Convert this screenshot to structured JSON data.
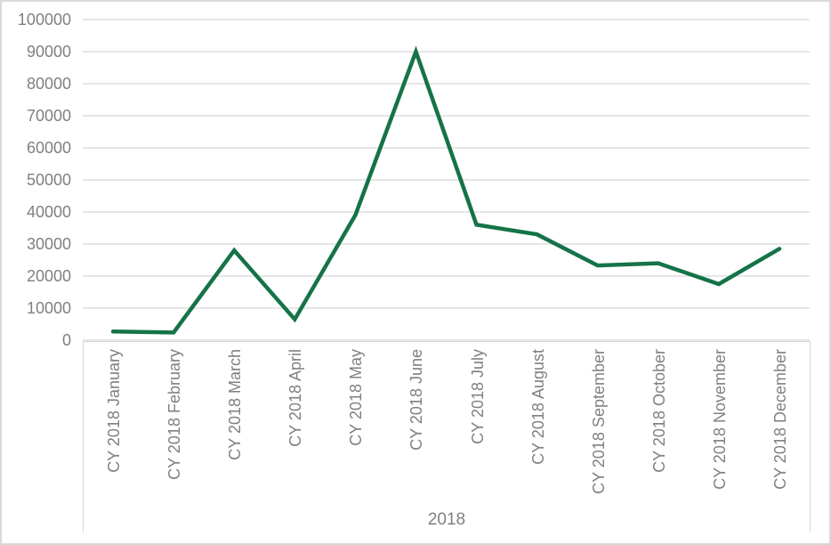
{
  "chart_data": {
    "type": "line",
    "title": "",
    "categories": [
      "CY 2018 January",
      "CY 2018 February",
      "CY 2018 March",
      "CY 2018 April",
      "CY 2018 May",
      "CY 2018 June",
      "CY 2018 July",
      "CY 2018 August",
      "CY 2018 September",
      "CY 2018 October",
      "CY 2018 November",
      "CY 2018 December"
    ],
    "values": [
      2700,
      2400,
      28000,
      6500,
      39000,
      90000,
      36000,
      33000,
      23300,
      24000,
      17500,
      28500
    ],
    "xlabel": "2018",
    "ylabel": "",
    "ylim": [
      0,
      100000
    ],
    "yticks": [
      100000,
      90000,
      80000,
      70000,
      60000,
      50000,
      40000,
      30000,
      20000,
      10000,
      0
    ],
    "grid": true,
    "legend": false,
    "colors": {
      "line": "#157347",
      "gridline": "#d6d6d6",
      "axis_text": "#808080",
      "border": "#d9d9d9"
    }
  }
}
